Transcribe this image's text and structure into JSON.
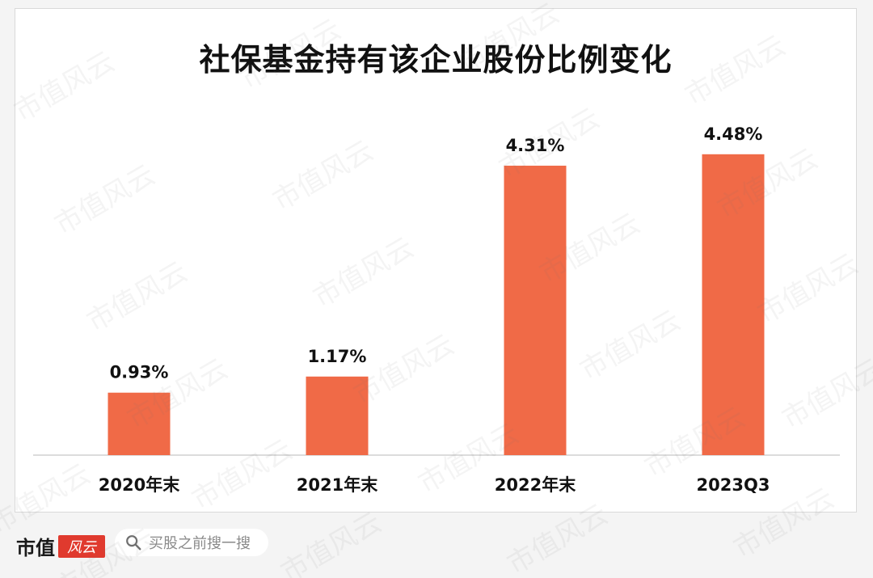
{
  "chart_data": {
    "type": "bar",
    "title": "社保基金持有该企业股份比例变化",
    "categories": [
      "2020年末",
      "2021年末",
      "2022年末",
      "2023Q3"
    ],
    "values": [
      0.93,
      1.17,
      4.31,
      4.48
    ],
    "value_labels": [
      "0.93%",
      "1.17%",
      "4.31%",
      "4.48%"
    ],
    "unit": "%",
    "ylim": [
      0,
      5.2
    ],
    "grid": false,
    "bar_color": "#f06a47"
  },
  "footer": {
    "brand_text": "市值",
    "brand_logo_text": "风云",
    "search_placeholder": "买股之前搜一搜",
    "search_icon": "search-icon"
  },
  "watermark": {
    "text": "市值风云"
  }
}
